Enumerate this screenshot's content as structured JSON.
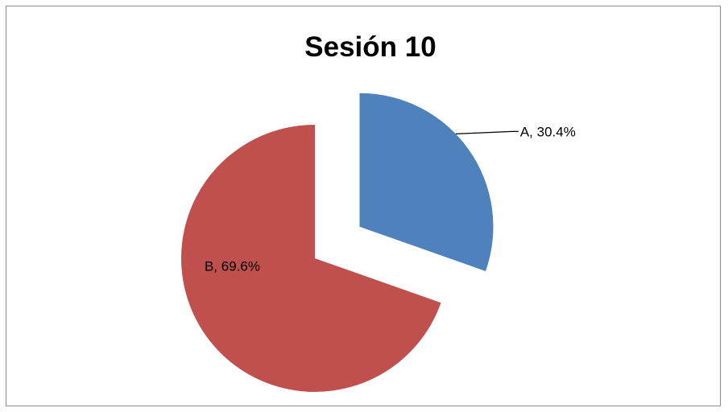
{
  "chart_data": {
    "type": "pie",
    "title": "Sesión 10",
    "slices": [
      {
        "name": "A",
        "value": 30.4,
        "label": "A, 30.4%",
        "color": "#4f81bd",
        "exploded": true
      },
      {
        "name": "B",
        "value": 69.6,
        "label": "B, 69.6%",
        "color": "#c0504d",
        "exploded": false
      }
    ],
    "start_angle_deg": 0,
    "direction": "clockwise",
    "legend": "none",
    "data_labels": "category name and percentage"
  }
}
